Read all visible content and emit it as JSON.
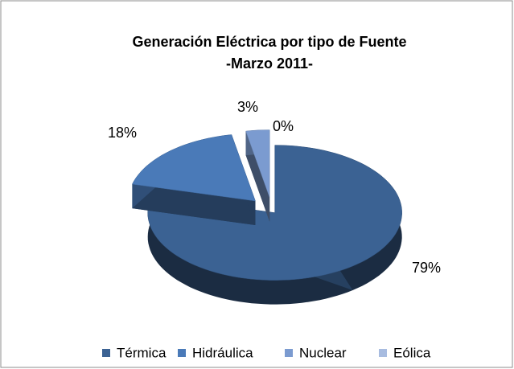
{
  "chart_data": {
    "type": "pie3d",
    "title": "Generación Eléctrica por tipo de Fuente",
    "subtitle": "-Marzo 2011-",
    "categories": [
      "Térmica",
      "Hidráulica",
      "Nuclear",
      "Eólica"
    ],
    "values": [
      79,
      18,
      3,
      0
    ],
    "value_labels": [
      "79%",
      "18%",
      "3%",
      "0%"
    ],
    "colors": [
      "#3b6293",
      "#4a7ab8",
      "#7b9bd0",
      "#a8bce0"
    ],
    "legend": "bottom"
  }
}
